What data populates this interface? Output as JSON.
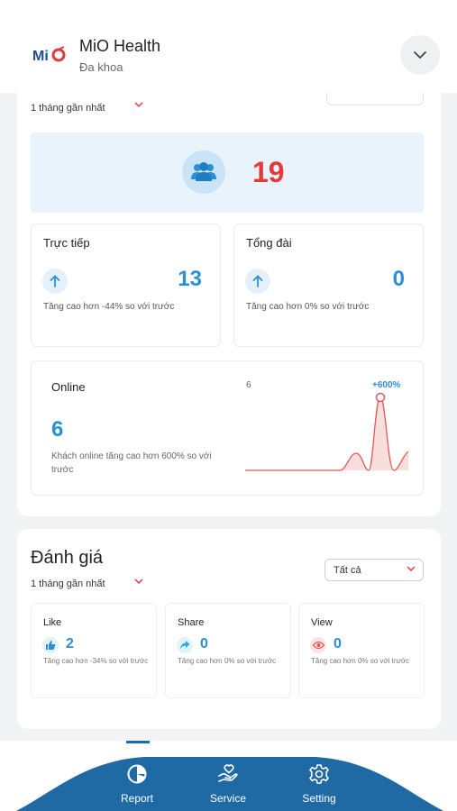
{
  "header": {
    "logo_text": "MiO",
    "app_name": "MiO Health",
    "subtitle": "Đa khoa"
  },
  "summary": {
    "period": "1 tháng gần nhất",
    "total": "19",
    "direct": {
      "label": "Trực tiếp",
      "value": "13",
      "desc": "Tăng cao hơn -44% so với trước"
    },
    "hotline": {
      "label": "Tổng đài",
      "value": "0",
      "desc": "Tăng cao hơn 0% so với trước"
    },
    "online": {
      "label": "Online",
      "value": "6",
      "desc": "Khách online tăng cao hơn 600% so với trước",
      "chart_max_label": "6",
      "change_label": "+600%"
    }
  },
  "rating": {
    "title": "Đánh giá",
    "period": "1 tháng gần nhất",
    "filter": "Tất cả",
    "like": {
      "label": "Like",
      "value": "2",
      "desc": "Tăng cao hơn -34% so với trước"
    },
    "share": {
      "label": "Share",
      "value": "0",
      "desc": "Tăng cao hơn 0% so với trước"
    },
    "view": {
      "label": "View",
      "value": "0",
      "desc": "Tăng cao hơn 0% so với trước"
    }
  },
  "nav": {
    "items": [
      {
        "label": "Report",
        "icon": "pie-chart-icon",
        "active": true
      },
      {
        "label": "Service",
        "icon": "hand-heart-icon",
        "active": false
      },
      {
        "label": "Setting",
        "icon": "gear-icon",
        "active": false
      }
    ]
  },
  "colors": {
    "accent": "#2c8fd6",
    "highlight": "#e53a3a",
    "nav_bg": "#1f6aa5"
  }
}
